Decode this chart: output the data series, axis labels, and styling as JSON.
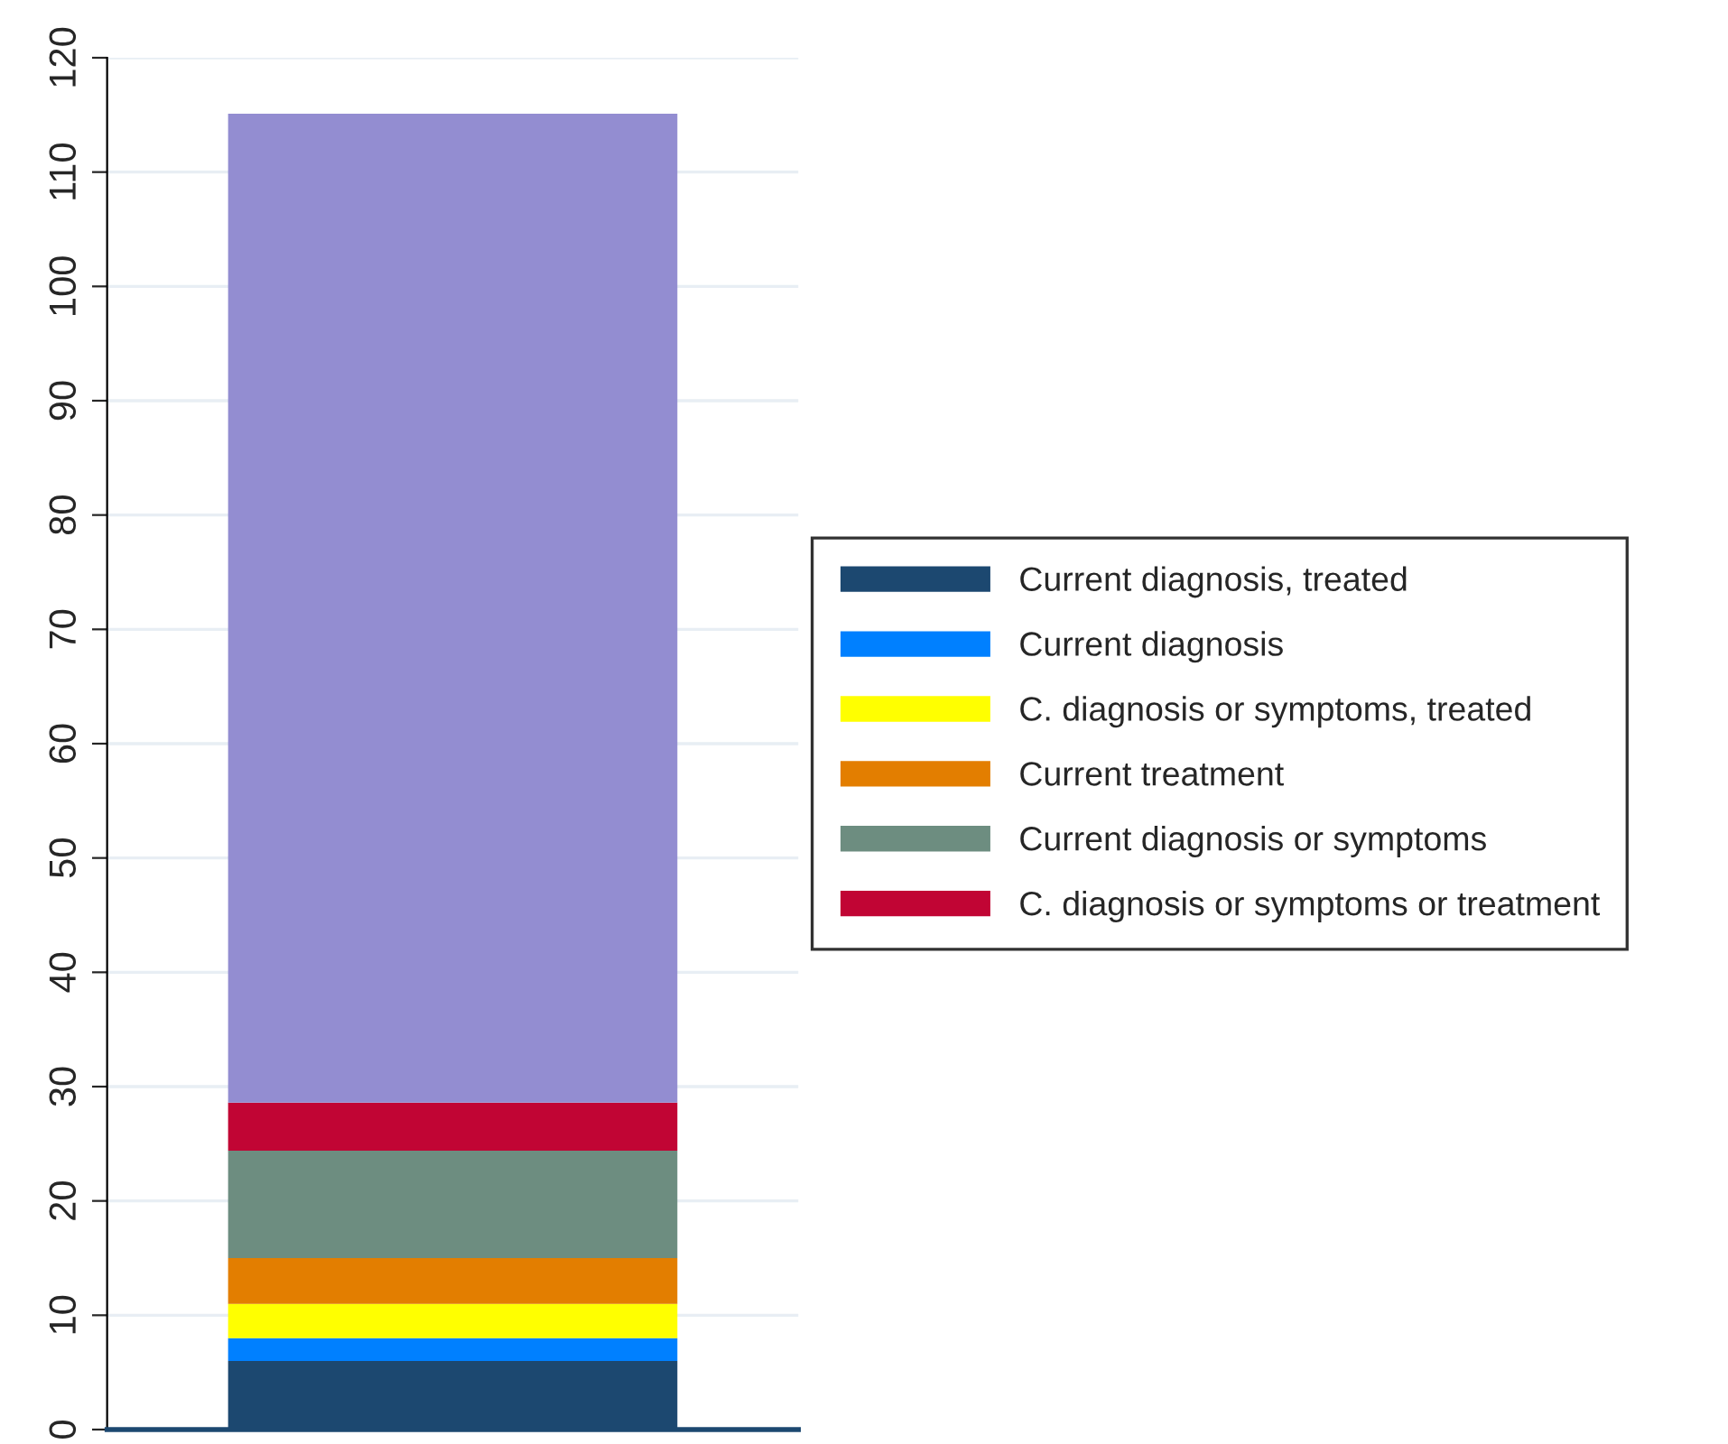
{
  "chart_data": {
    "type": "bar",
    "stacked": true,
    "categories": [
      null
    ],
    "series": [
      {
        "name": "Current diagnosis, treated",
        "color": "#1c4870",
        "values": [
          6
        ]
      },
      {
        "name": "Current diagnosis",
        "color": "#0080ff",
        "values": [
          2
        ]
      },
      {
        "name": "C. diagnosis or symptoms, treated",
        "color": "#ffff00",
        "values": [
          3
        ]
      },
      {
        "name": "Current treatment",
        "color": "#e37e00",
        "values": [
          4
        ]
      },
      {
        "name": "Current diagnosis or symptoms",
        "color": "#6d8d80",
        "values": [
          9.4
        ]
      },
      {
        "name": "C. diagnosis or symptoms or treatment",
        "color": "#c10534",
        "values": [
          4.2
        ]
      },
      {
        "color": "#938dd1",
        "values": [
          86.5
        ]
      }
    ],
    "ylim": [
      0,
      120
    ],
    "yticks": [
      0,
      10,
      20,
      30,
      40,
      50,
      60,
      70,
      80,
      90,
      100,
      110,
      120
    ],
    "grid": "y",
    "legend": "right",
    "tick_labels": "y"
  }
}
